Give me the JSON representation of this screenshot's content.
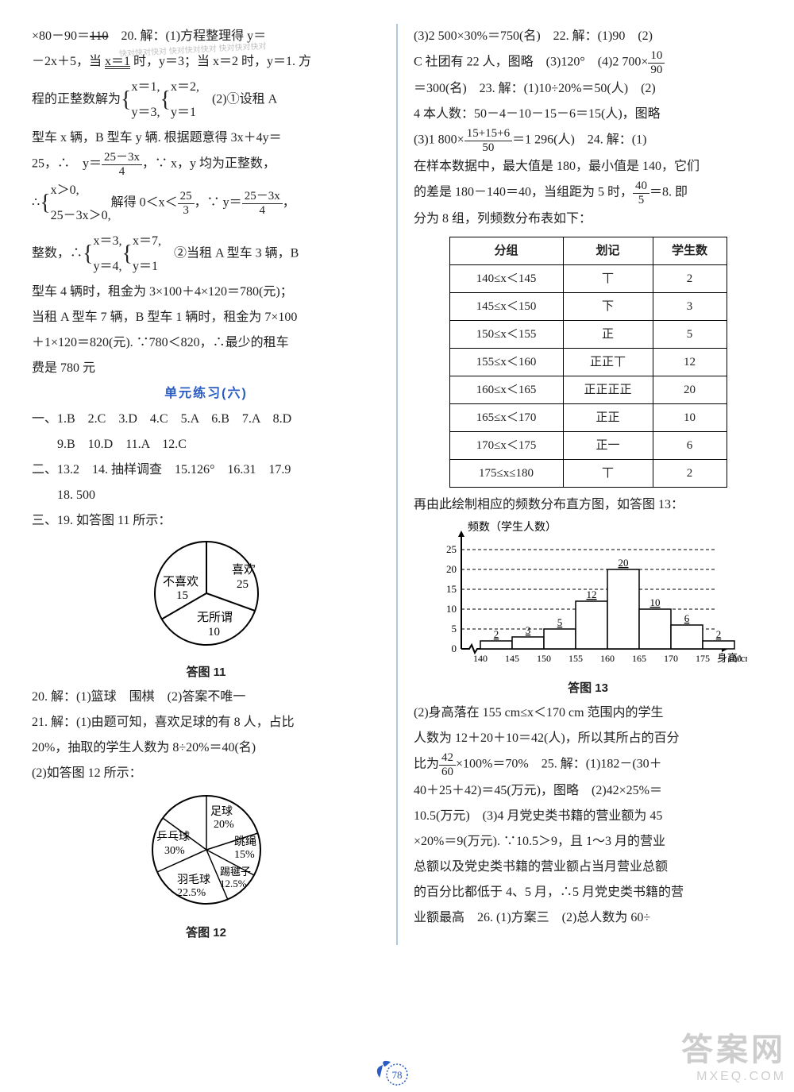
{
  "stamp": {
    "text": "快对快对快对\n快对快对快对\n快对快对快对"
  },
  "left": {
    "l1a": "×80－90＝",
    "l1strike": "110",
    "l1b": "　20. 解：(1)方程整理得 y＝",
    "l2a": "－2x＋5，当 ",
    "l2i": "x＝1",
    "l2b": " 时，y＝3；当 x＝2 时，y＝1. 方",
    "l3": "程的正整数解为",
    "sys1": {
      "a1": "x＝1,",
      "a2": "y＝3,",
      "b1": "x＝2,",
      "b2": "y＝1"
    },
    "l3e": "　(2)①设租 A",
    "l4": "型车 x 辆，B 型车 y 辆. 根据题意得 3x＋4y＝",
    "l5a": "25，∴　y＝",
    "fr1": {
      "n": "25－3x",
      "d": "4"
    },
    "l5b": "，∵ x，y 均为正整数，",
    "l6a": "∴",
    "sys2": {
      "a1": "x＞0,",
      "a2": "25－3x＞0,"
    },
    "l6b": "解得 0＜x＜",
    "fr2": {
      "n": "25",
      "d": "3"
    },
    "l6c": "，∵ y＝",
    "fr3": {
      "n": "25－3x",
      "d": "4"
    },
    "l6d": "，",
    "l7a": "整数，∴",
    "sys3": {
      "a1": "x＝3,",
      "a2": "y＝4,",
      "b1": "x＝7,",
      "b2": "y＝1"
    },
    "l7b": "　②当租 A 型车 3 辆，B",
    "l8": "型车 4 辆时，租金为 3×100＋4×120＝780(元)；",
    "l9": "当租 A 型车 7 辆，B 型车 1 辆时，租金为 7×100",
    "l10": "＋1×120＝820(元). ∵780＜820，∴最少的租车",
    "l11": "费是 780 元",
    "heading": "单元练习(六)",
    "ans1": "一、1.B　2.C　3.D　4.C　5.A　6.B　7.A　8.D",
    "ans1b": "9.B　10.D　11.A　12.C",
    "ans2": "二、13.2　14. 抽样调查　15.126°　16.31　17.9",
    "ans2b": "18. 500",
    "ans3": "三、19.  如答图 11 所示：",
    "pie1": {
      "cap": "答图 11",
      "a": "喜欢",
      "av": "25",
      "b": "不喜欢",
      "bv": "15",
      "c": "无所谓",
      "cv": "10",
      "colors": {
        "stroke": "#000",
        "fill": "#fff"
      }
    },
    "l20": "20. 解：(1)篮球　围棋　(2)答案不唯一",
    "l21": "21. 解：(1)由题可知，喜欢足球的有 8 人，占比",
    "l21b": "20%，抽取的学生人数为 8÷20%＝40(名)",
    "l21c": "(2)如答图 12 所示：",
    "pie2": {
      "cap": "答图 12",
      "labels": [
        "足球",
        "20%",
        "跳绳",
        "15%",
        "踢毽子",
        "12.5%",
        "羽毛球",
        "22.5%",
        "乒乓球",
        "30%"
      ],
      "colors": {
        "stroke": "#000",
        "fill": "#fff"
      }
    }
  },
  "right": {
    "r1": "(3)2 500×30%＝750(名)　22. 解：(1)90　(2)",
    "r2a": "C 社团有 22 人，图略　(3)120°　(4)2 700×",
    "fr4": {
      "n": "10",
      "d": "90"
    },
    "r3": "＝300(名)　23. 解：(1)10÷20%＝50(人)　(2)",
    "r4": "4 本人数：50－4－10－15－6＝15(人)，图略",
    "r5a": "(3)1 800×",
    "fr5": {
      "n": "15+15+6",
      "d": "50"
    },
    "r5b": "＝1 296(人)　24. 解：(1)",
    "r6": "在样本数据中，最大值是 180，最小值是 140，它们",
    "r7a": "的差是 180－140＝40，当组距为 5 时，",
    "fr6": {
      "n": "40",
      "d": "5"
    },
    "r7b": "＝8. 即",
    "r8": "分为 8 组，列频数分布表如下：",
    "table": {
      "headers": [
        "分组",
        "划记",
        "学生数"
      ],
      "rows": [
        [
          "140≤x＜145",
          "丅",
          "2"
        ],
        [
          "145≤x＜150",
          "下",
          "3"
        ],
        [
          "150≤x＜155",
          "正",
          "5"
        ],
        [
          "155≤x＜160",
          "正正丅",
          "12"
        ],
        [
          "160≤x＜165",
          "正正正正",
          "20"
        ],
        [
          "165≤x＜170",
          "正正",
          "10"
        ],
        [
          "170≤x＜175",
          "正一",
          "6"
        ],
        [
          "175≤x≤180",
          "丅",
          "2"
        ]
      ]
    },
    "r9": "再由此绘制相应的频数分布直方图，如答图 13：",
    "hist": {
      "ylabel": "频数（学生人数）",
      "xlabel": "身高/cm",
      "cap": "答图 13",
      "yticks": [
        0,
        5,
        10,
        15,
        20,
        25
      ],
      "ylim": [
        0,
        27
      ],
      "xticks": [
        "140",
        "145",
        "150",
        "155",
        "160",
        "165",
        "170",
        "175",
        "180"
      ],
      "values": [
        2,
        3,
        5,
        12,
        20,
        10,
        6,
        2
      ],
      "value_labels": [
        "2",
        "3",
        "5",
        "12",
        "20",
        "10",
        "6",
        "2"
      ],
      "colors": {
        "axis": "#000",
        "bar_fill": "#fff",
        "bar_stroke": "#000",
        "dash": "#000"
      }
    },
    "r10": "(2)身高落在 155 cm≤x＜170 cm 范围内的学生",
    "r11": "人数为 12＋20＋10＝42(人)，所以其所占的百分",
    "r12a": "比为",
    "fr7": {
      "n": "42",
      "d": "60"
    },
    "r12b": "×100%＝70%　25. 解：(1)182－(30＋",
    "r13": "40＋25＋42)＝45(万元)，图略　(2)42×25%＝",
    "r14": "10.5(万元)　(3)4 月党史类书籍的营业额为 45",
    "r15": "×20%＝9(万元). ∵10.5＞9，且 1～3 月的营业",
    "r16": "总额以及党史类书籍的营业额占当月营业总额",
    "r17": "的百分比都低于 4、5 月，∴5 月党史类书籍的营",
    "r18": "业额最高　26. (1)方案三　(2)总人数为 60÷"
  },
  "watermark": {
    "big": "答案网",
    "small": "MXEQ.COM"
  },
  "pageno": "78"
}
